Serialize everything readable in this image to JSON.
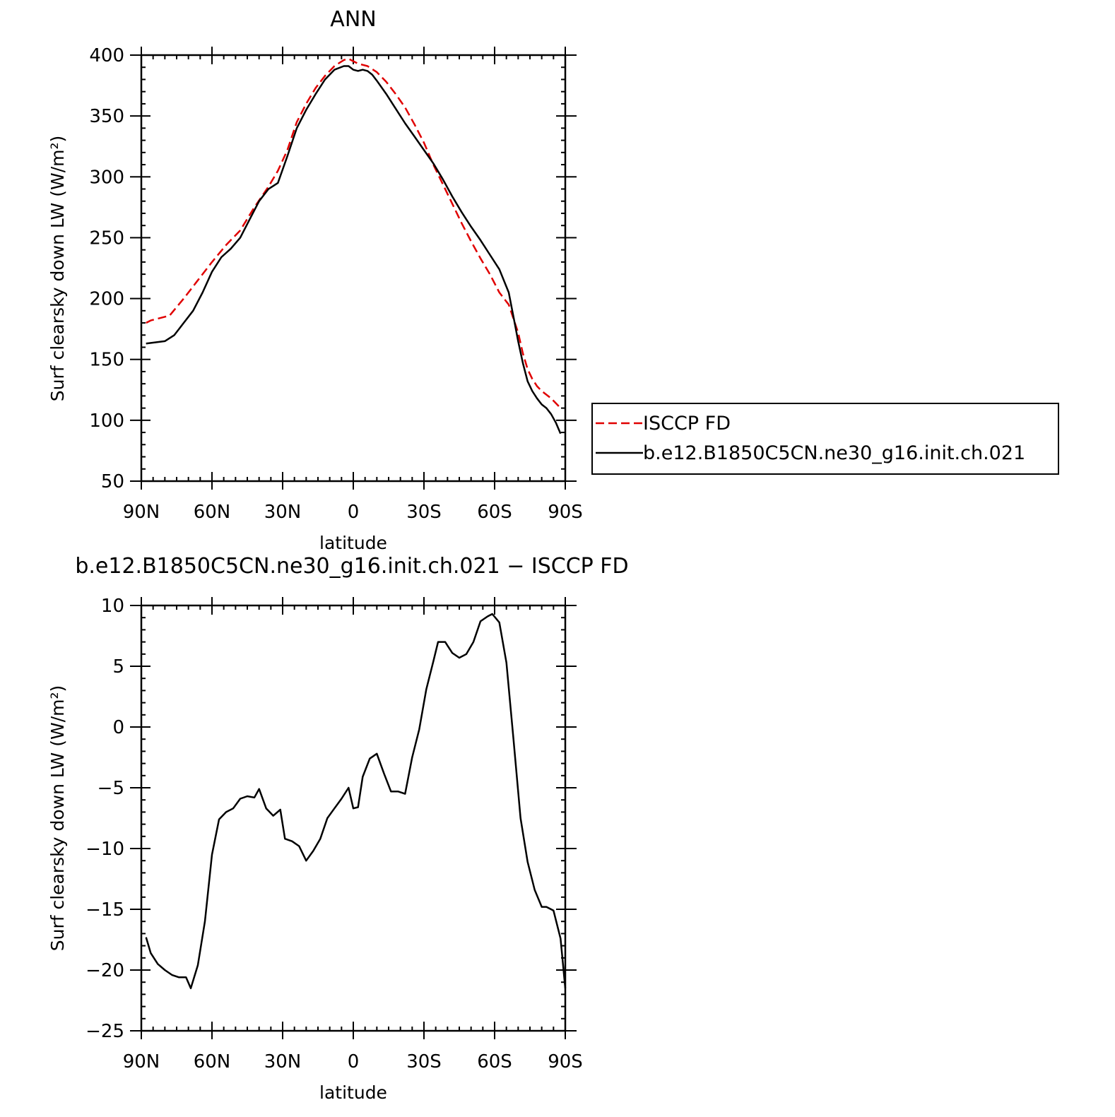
{
  "chart_data": [
    {
      "type": "line",
      "title": "ANN",
      "xlabel": "latitude",
      "ylabel": "Surf clearsky down LW (W/m²)",
      "ylim": [
        50,
        400
      ],
      "xlim": [
        90,
        -90
      ],
      "xticks": [
        {
          "value": 90,
          "label": "90N"
        },
        {
          "value": 60,
          "label": "60N"
        },
        {
          "value": 30,
          "label": "30N"
        },
        {
          "value": 0,
          "label": "0"
        },
        {
          "value": -30,
          "label": "30S"
        },
        {
          "value": -60,
          "label": "60S"
        },
        {
          "value": -90,
          "label": "90S"
        }
      ],
      "yticks": [
        50,
        100,
        150,
        200,
        250,
        300,
        350,
        400
      ],
      "legend_position": "right",
      "series": [
        {
          "name": "ISCCP FD",
          "color": "#e00000",
          "dash": true,
          "points": [
            [
              88,
              180
            ],
            [
              86,
              182
            ],
            [
              78,
              186
            ],
            [
              72,
              200
            ],
            [
              66,
              215
            ],
            [
              60,
              230
            ],
            [
              54,
              244
            ],
            [
              48,
              256
            ],
            [
              42,
              275
            ],
            [
              36,
              292
            ],
            [
              32,
              305
            ],
            [
              28,
              322
            ],
            [
              24,
              345
            ],
            [
              20,
              360
            ],
            [
              16,
              373
            ],
            [
              12,
              383
            ],
            [
              8,
              391
            ],
            [
              4,
              396
            ],
            [
              2,
              397
            ],
            [
              0,
              395
            ],
            [
              -2,
              393
            ],
            [
              -6,
              391
            ],
            [
              -10,
              386
            ],
            [
              -14,
              378
            ],
            [
              -18,
              368
            ],
            [
              -22,
              357
            ],
            [
              -26,
              343
            ],
            [
              -30,
              328
            ],
            [
              -34,
              310
            ],
            [
              -38,
              294
            ],
            [
              -42,
              278
            ],
            [
              -46,
              262
            ],
            [
              -50,
              247
            ],
            [
              -54,
              233
            ],
            [
              -58,
              220
            ],
            [
              -62,
              205
            ],
            [
              -66,
              195
            ],
            [
              -70,
              172
            ],
            [
              -72,
              155
            ],
            [
              -74,
              142
            ],
            [
              -76,
              134
            ],
            [
              -78,
              128
            ],
            [
              -80,
              124
            ],
            [
              -84,
              118
            ],
            [
              -88,
              110
            ]
          ]
        },
        {
          "name": "b.e12.B1850C5CN.ne30_g16.init.ch.021",
          "color": "#000000",
          "dash": false,
          "points": [
            [
              88,
              163
            ],
            [
              80,
              165
            ],
            [
              76,
              170
            ],
            [
              72,
              180
            ],
            [
              68,
              190
            ],
            [
              64,
              205
            ],
            [
              60,
              222
            ],
            [
              56,
              234
            ],
            [
              52,
              241
            ],
            [
              48,
              250
            ],
            [
              44,
              265
            ],
            [
              40,
              280
            ],
            [
              36,
              290
            ],
            [
              32,
              295
            ],
            [
              28,
              317
            ],
            [
              24,
              340
            ],
            [
              20,
              355
            ],
            [
              16,
              368
            ],
            [
              12,
              380
            ],
            [
              8,
              388
            ],
            [
              4,
              391
            ],
            [
              2,
              391
            ],
            [
              0,
              388
            ],
            [
              -2,
              387
            ],
            [
              -4,
              388
            ],
            [
              -6,
              387
            ],
            [
              -8,
              384
            ],
            [
              -10,
              379
            ],
            [
              -14,
              368
            ],
            [
              -18,
              356
            ],
            [
              -22,
              344
            ],
            [
              -26,
              333
            ],
            [
              -30,
              322
            ],
            [
              -34,
              311
            ],
            [
              -38,
              298
            ],
            [
              -42,
              284
            ],
            [
              -46,
              271
            ],
            [
              -50,
              259
            ],
            [
              -54,
              248
            ],
            [
              -58,
              236
            ],
            [
              -62,
              224
            ],
            [
              -66,
              205
            ],
            [
              -68,
              185
            ],
            [
              -70,
              165
            ],
            [
              -72,
              147
            ],
            [
              -74,
              132
            ],
            [
              -76,
              124
            ],
            [
              -78,
              118
            ],
            [
              -80,
              113
            ],
            [
              -82,
              110
            ],
            [
              -84,
              105
            ],
            [
              -86,
              98
            ],
            [
              -88,
              89
            ]
          ]
        }
      ]
    },
    {
      "type": "line",
      "title": "b.e12.B1850C5CN.ne30_g16.init.ch.021 − ISCCP FD",
      "xlabel": "latitude",
      "ylabel": "Surf clearsky down LW (W/m²)",
      "ylim": [
        -25,
        10
      ],
      "xlim": [
        90,
        -90
      ],
      "xticks": [
        {
          "value": 90,
          "label": "90N"
        },
        {
          "value": 60,
          "label": "60N"
        },
        {
          "value": 30,
          "label": "30N"
        },
        {
          "value": 0,
          "label": "0"
        },
        {
          "value": -30,
          "label": "30S"
        },
        {
          "value": -60,
          "label": "60S"
        },
        {
          "value": -90,
          "label": "90S"
        }
      ],
      "yticks": [
        {
          "value": -25,
          "label": "−25"
        },
        {
          "value": -20,
          "label": "−20"
        },
        {
          "value": -15,
          "label": "−15"
        },
        {
          "value": -10,
          "label": "−10"
        },
        {
          "value": -5,
          "label": "−5"
        },
        {
          "value": 0,
          "label": "0"
        },
        {
          "value": 5,
          "label": "5"
        },
        {
          "value": 10,
          "label": "10"
        }
      ],
      "series": [
        {
          "color": "#000000",
          "dash": false,
          "points": [
            [
              88,
              -17.3
            ],
            [
              86,
              -18.6
            ],
            [
              83,
              -19.5
            ],
            [
              80,
              -20
            ],
            [
              77,
              -20.4
            ],
            [
              74,
              -20.6
            ],
            [
              71,
              -20.6
            ],
            [
              69,
              -21.5
            ],
            [
              66,
              -19.6
            ],
            [
              63,
              -16
            ],
            [
              60,
              -10.5
            ],
            [
              57,
              -7.6
            ],
            [
              54,
              -7
            ],
            [
              51,
              -6.7
            ],
            [
              48,
              -5.9
            ],
            [
              45,
              -5.7
            ],
            [
              42,
              -5.8
            ],
            [
              40,
              -5.1
            ],
            [
              37,
              -6.7
            ],
            [
              34,
              -7.3
            ],
            [
              31,
              -6.8
            ],
            [
              29,
              -9.2
            ],
            [
              26,
              -9.4
            ],
            [
              23,
              -9.8
            ],
            [
              20,
              -11
            ],
            [
              17,
              -10.2
            ],
            [
              14,
              -9.2
            ],
            [
              11,
              -7.5
            ],
            [
              8,
              -6.7
            ],
            [
              5,
              -5.9
            ],
            [
              2,
              -5
            ],
            [
              0,
              -6.7
            ],
            [
              -2,
              -6.6
            ],
            [
              -4,
              -4.1
            ],
            [
              -7,
              -2.6
            ],
            [
              -10,
              -2.2
            ],
            [
              -13,
              -3.8
            ],
            [
              -16,
              -5.3
            ],
            [
              -19,
              -5.3
            ],
            [
              -22,
              -5.5
            ],
            [
              -25,
              -2.5
            ],
            [
              -28,
              -0.2
            ],
            [
              -31,
              3.1
            ],
            [
              -34,
              5.4
            ],
            [
              -36,
              7
            ],
            [
              -39,
              7
            ],
            [
              -42,
              6.1
            ],
            [
              -45,
              5.7
            ],
            [
              -48,
              6
            ],
            [
              -51,
              7
            ],
            [
              -54,
              8.7
            ],
            [
              -57,
              9.1
            ],
            [
              -59,
              9.3
            ],
            [
              -62,
              8.6
            ],
            [
              -65,
              5.3
            ],
            [
              -68,
              -1
            ],
            [
              -71,
              -7.5
            ],
            [
              -74,
              -11.1
            ],
            [
              -77,
              -13.4
            ],
            [
              -80,
              -14.8
            ],
            [
              -82,
              -14.8
            ],
            [
              -85,
              -15.1
            ],
            [
              -88,
              -17.4
            ],
            [
              -90,
              -21.5
            ]
          ]
        }
      ]
    }
  ]
}
